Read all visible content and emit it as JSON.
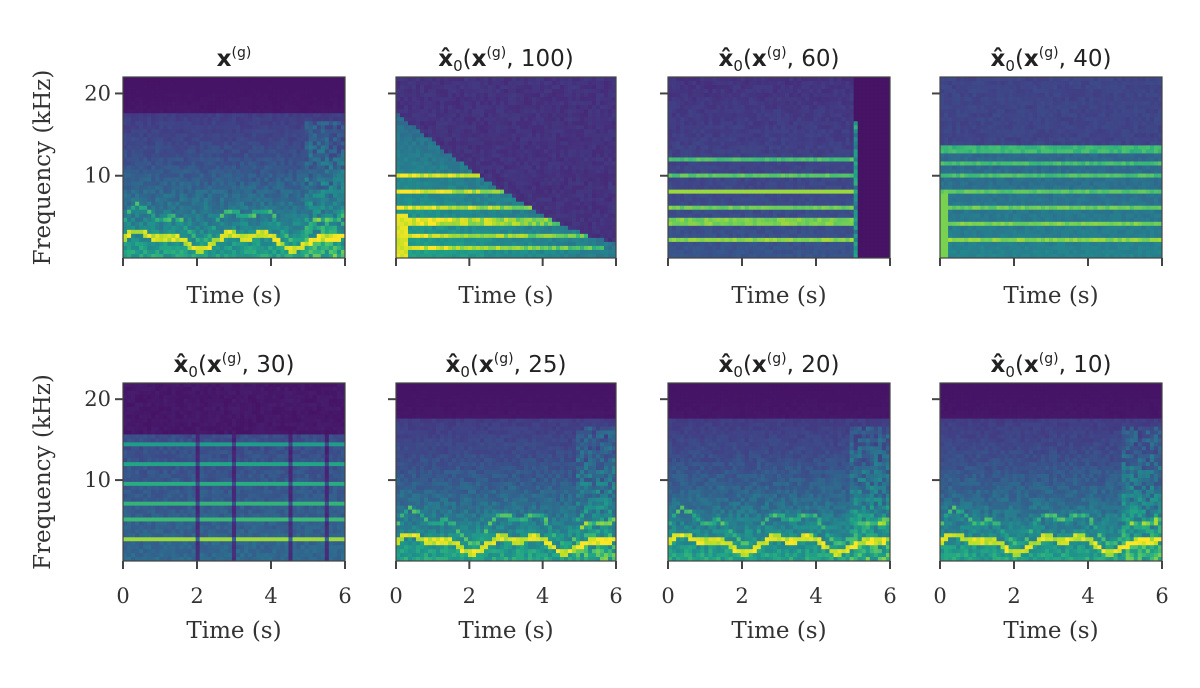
{
  "chart_data": [
    {
      "type": "heatmap",
      "title_main": "x",
      "title_sup": "(g)",
      "title_args": "",
      "xlabel": "Time (s)",
      "ylabel": "Frequency (kHz)",
      "xlim": [
        0,
        6
      ],
      "ylim": [
        0,
        22
      ],
      "yticks": [
        "20",
        "10"
      ],
      "xticks": [
        "0",
        "2",
        "4",
        "6"
      ],
      "show_xticklabels": false,
      "show_yticklabels": true,
      "pattern": "full",
      "colormap": "viridis"
    },
    {
      "type": "heatmap",
      "title_main": "x̂",
      "title_sub": "0",
      "title_inner": "x",
      "title_sup": "(g)",
      "title_args": ", 100)",
      "xlabel": "Time (s)",
      "ylabel": "",
      "xlim": [
        0,
        6
      ],
      "ylim": [
        0,
        22
      ],
      "yticks": [
        "20",
        "10"
      ],
      "xticks": [
        "0",
        "2",
        "4",
        "6"
      ],
      "show_xticklabels": false,
      "show_yticklabels": false,
      "pattern": "sustained-decay",
      "colormap": "viridis"
    },
    {
      "type": "heatmap",
      "title_main": "x̂",
      "title_sub": "0",
      "title_inner": "x",
      "title_sup": "(g)",
      "title_args": ", 60)",
      "xlabel": "Time (s)",
      "ylabel": "",
      "xlim": [
        0,
        6
      ],
      "ylim": [
        0,
        22
      ],
      "yticks": [
        "20",
        "10"
      ],
      "xticks": [
        "0",
        "2",
        "4",
        "6"
      ],
      "show_xticklabels": false,
      "show_yticklabels": false,
      "pattern": "bands-cutoff",
      "colormap": "viridis"
    },
    {
      "type": "heatmap",
      "title_main": "x̂",
      "title_sub": "0",
      "title_inner": "x",
      "title_sup": "(g)",
      "title_args": ", 40)",
      "xlabel": "Time (s)",
      "ylabel": "",
      "xlim": [
        0,
        6
      ],
      "ylim": [
        0,
        22
      ],
      "yticks": [
        "20",
        "10"
      ],
      "xticks": [
        "0",
        "2",
        "4",
        "6"
      ],
      "show_xticklabels": false,
      "show_yticklabels": false,
      "pattern": "bands-soft",
      "colormap": "viridis"
    },
    {
      "type": "heatmap",
      "title_main": "x̂",
      "title_sub": "0",
      "title_inner": "x",
      "title_sup": "(g)",
      "title_args": ", 30)",
      "xlabel": "Time (s)",
      "ylabel": "Frequency (kHz)",
      "xlim": [
        0,
        6
      ],
      "ylim": [
        0,
        22
      ],
      "yticks": [
        "20",
        "10"
      ],
      "xticks": [
        "0",
        "2",
        "4",
        "6"
      ],
      "show_xticklabels": true,
      "show_yticklabels": true,
      "pattern": "notes",
      "colormap": "viridis"
    },
    {
      "type": "heatmap",
      "title_main": "x̂",
      "title_sub": "0",
      "title_inner": "x",
      "title_sup": "(g)",
      "title_args": ", 25)",
      "xlabel": "Time (s)",
      "ylabel": "",
      "xlim": [
        0,
        6
      ],
      "ylim": [
        0,
        22
      ],
      "yticks": [
        "20",
        "10"
      ],
      "xticks": [
        "0",
        "2",
        "4",
        "6"
      ],
      "show_xticklabels": true,
      "show_yticklabels": false,
      "pattern": "full",
      "colormap": "viridis"
    },
    {
      "type": "heatmap",
      "title_main": "x̂",
      "title_sub": "0",
      "title_inner": "x",
      "title_sup": "(g)",
      "title_args": ", 20)",
      "xlabel": "Time (s)",
      "ylabel": "",
      "xlim": [
        0,
        6
      ],
      "ylim": [
        0,
        22
      ],
      "yticks": [
        "20",
        "10"
      ],
      "xticks": [
        "0",
        "2",
        "4",
        "6"
      ],
      "show_xticklabels": true,
      "show_yticklabels": false,
      "pattern": "full",
      "colormap": "viridis"
    },
    {
      "type": "heatmap",
      "title_main": "x̂",
      "title_sub": "0",
      "title_inner": "x",
      "title_sup": "(g)",
      "title_args": ", 10)",
      "xlabel": "Time (s)",
      "ylabel": "",
      "xlim": [
        0,
        6
      ],
      "ylim": [
        0,
        22
      ],
      "yticks": [
        "20",
        "10"
      ],
      "xticks": [
        "0",
        "2",
        "4",
        "6"
      ],
      "show_xticklabels": true,
      "show_yticklabels": false,
      "pattern": "full",
      "colormap": "viridis"
    }
  ]
}
